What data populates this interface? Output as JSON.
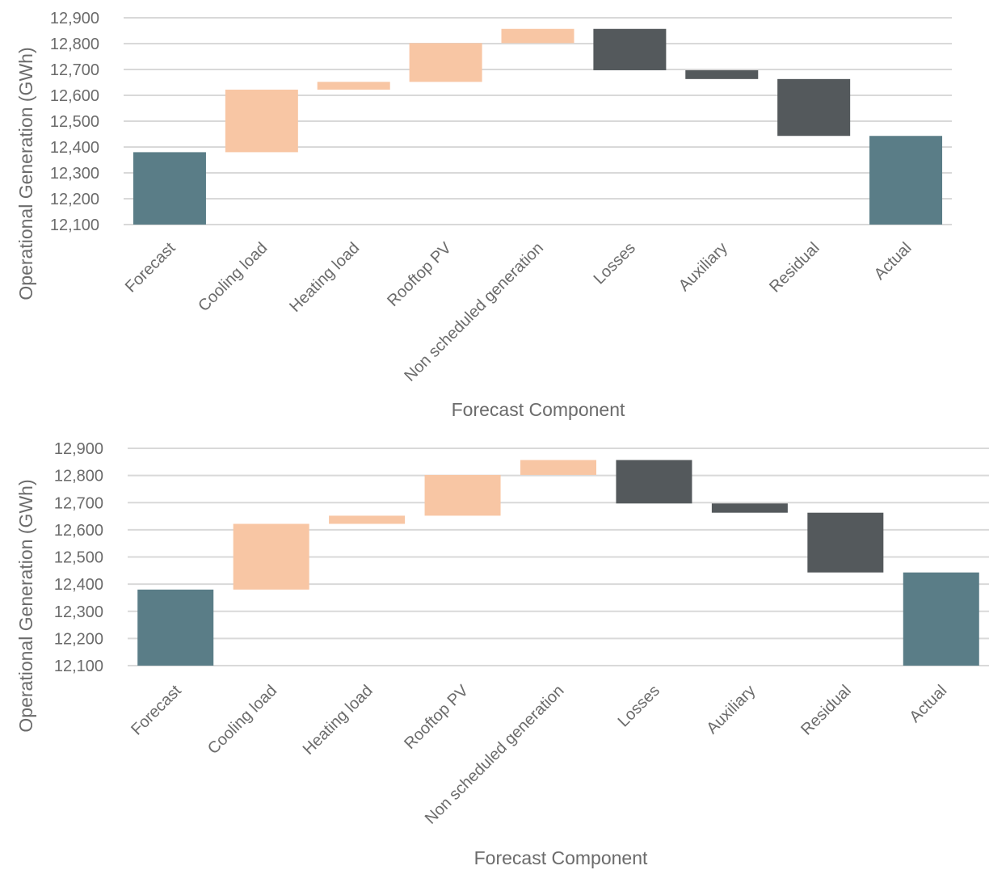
{
  "chart_data": [
    {
      "type": "waterfall",
      "ylabel": "Operational Generation (GWh)",
      "xlabel": "Forecast Component",
      "ylim": [
        12100,
        12900
      ],
      "y_ticks": [
        "12,100",
        "12,200",
        "12,300",
        "12,400",
        "12,500",
        "12,600",
        "12,700",
        "12,800",
        "12,900"
      ],
      "y_tick_values": [
        12100,
        12200,
        12300,
        12400,
        12500,
        12600,
        12700,
        12800,
        12900
      ],
      "grid": true,
      "colors": {
        "total": "#5a7d87",
        "increase": "#f8c6a4",
        "decrease": "#54595c"
      },
      "categories": [
        "Forecast",
        "Cooling load",
        "Heating load",
        "Rooftop PV",
        "Non scheduled generation",
        "Losses",
        "Auxiliary",
        "Residual",
        "Actual"
      ],
      "bars": [
        {
          "category": "Forecast",
          "kind": "total",
          "start": 12100,
          "end": 12380
        },
        {
          "category": "Cooling load",
          "kind": "increase",
          "start": 12380,
          "end": 12622
        },
        {
          "category": "Heating load",
          "kind": "increase",
          "start": 12622,
          "end": 12652
        },
        {
          "category": "Rooftop PV",
          "kind": "increase",
          "start": 12652,
          "end": 12802
        },
        {
          "category": "Non scheduled generation",
          "kind": "increase",
          "start": 12802,
          "end": 12857
        },
        {
          "category": "Losses",
          "kind": "decrease",
          "start": 12857,
          "end": 12697
        },
        {
          "category": "Auxiliary",
          "kind": "decrease",
          "start": 12697,
          "end": 12663
        },
        {
          "category": "Residual",
          "kind": "decrease",
          "start": 12663,
          "end": 12443
        },
        {
          "category": "Actual",
          "kind": "total",
          "start": 12100,
          "end": 12443
        }
      ]
    },
    {
      "type": "waterfall",
      "ylabel": "Operational Generation (GWh)",
      "xlabel": "Forecast Component",
      "ylim": [
        12100,
        12900
      ],
      "y_ticks": [
        "12,100",
        "12,200",
        "12,300",
        "12,400",
        "12,500",
        "12,600",
        "12,700",
        "12,800",
        "12,900"
      ],
      "y_tick_values": [
        12100,
        12200,
        12300,
        12400,
        12500,
        12600,
        12700,
        12800,
        12900
      ],
      "grid": true,
      "colors": {
        "total": "#5a7d87",
        "increase": "#f8c6a4",
        "decrease": "#54595c"
      },
      "categories": [
        "Forecast",
        "Cooling load",
        "Heating load",
        "Rooftop PV",
        "Non scheduled generation",
        "Losses",
        "Auxiliary",
        "Residual",
        "Actual"
      ],
      "bars": [
        {
          "category": "Forecast",
          "kind": "total",
          "start": 12100,
          "end": 12380
        },
        {
          "category": "Cooling load",
          "kind": "increase",
          "start": 12380,
          "end": 12622
        },
        {
          "category": "Heating load",
          "kind": "increase",
          "start": 12622,
          "end": 12652
        },
        {
          "category": "Rooftop PV",
          "kind": "increase",
          "start": 12652,
          "end": 12802
        },
        {
          "category": "Non scheduled generation",
          "kind": "increase",
          "start": 12802,
          "end": 12857
        },
        {
          "category": "Losses",
          "kind": "decrease",
          "start": 12857,
          "end": 12697
        },
        {
          "category": "Auxiliary",
          "kind": "decrease",
          "start": 12697,
          "end": 12663
        },
        {
          "category": "Residual",
          "kind": "decrease",
          "start": 12663,
          "end": 12443
        },
        {
          "category": "Actual",
          "kind": "total",
          "start": 12100,
          "end": 12443
        }
      ]
    }
  ]
}
